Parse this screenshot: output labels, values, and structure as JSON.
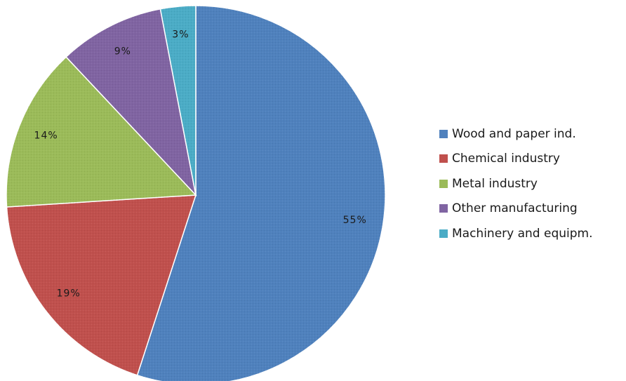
{
  "chart_data": {
    "type": "pie",
    "title": "",
    "legend_position": "right",
    "start_angle_deg": 0,
    "direction": "clockwise",
    "slices": [
      {
        "label": "Wood and paper ind.",
        "value": 55,
        "display": "55%",
        "color": "#4F81BD"
      },
      {
        "label": "Chemical industry",
        "value": 19,
        "display": "19%",
        "color": "#C0504D"
      },
      {
        "label": "Metal industry",
        "value": 14,
        "display": "14%",
        "color": "#9BBB59"
      },
      {
        "label": "Other manufacturing",
        "value": 9,
        "display": "9%",
        "color": "#8064A2"
      },
      {
        "label": "Machinery and equipm.",
        "value": 3,
        "display": "3%",
        "color": "#4BACC6"
      }
    ]
  }
}
